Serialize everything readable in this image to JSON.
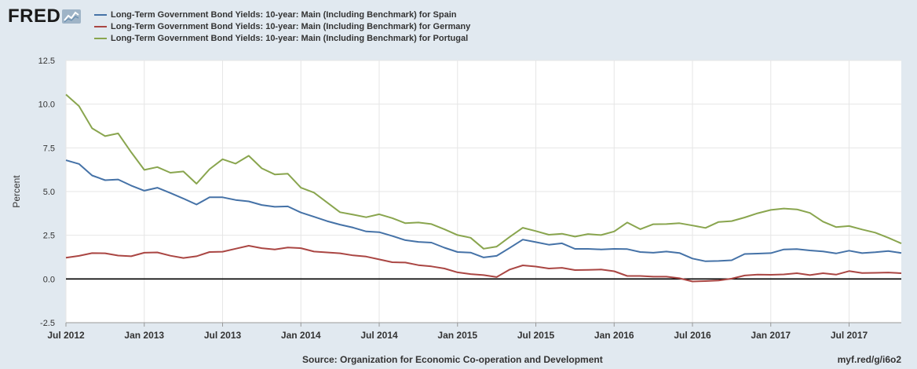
{
  "header": {
    "logo_text": "FRED",
    "logo_icon": "chart-line-icon"
  },
  "footer": {
    "source": "Source: Organization for Economic Co-operation and Development",
    "url": "myf.red/g/i6o2"
  },
  "chart_data": {
    "type": "line",
    "title": "",
    "xlabel": "",
    "ylabel": "Percent",
    "ylim": [
      -2.5,
      12.5
    ],
    "yticks": [
      -2.5,
      0.0,
      2.5,
      5.0,
      7.5,
      10.0,
      12.5
    ],
    "ytick_labels": [
      "-2.5",
      "0.0",
      "2.5",
      "5.0",
      "7.5",
      "10.0",
      "12.5"
    ],
    "xticks": [
      "2012-07",
      "2013-01",
      "2013-07",
      "2014-01",
      "2014-07",
      "2015-01",
      "2015-07",
      "2016-01",
      "2016-07",
      "2017-01",
      "2017-07"
    ],
    "xtick_labels": [
      "Jul 2012",
      "Jan 2013",
      "Jul 2013",
      "Jan 2014",
      "Jul 2014",
      "Jan 2015",
      "Jul 2015",
      "Jan 2016",
      "Jul 2016",
      "Jan 2017",
      "Jul 2017"
    ],
    "grid": true,
    "legend_position": "top",
    "x": [
      "2012-07",
      "2012-08",
      "2012-09",
      "2012-10",
      "2012-11",
      "2012-12",
      "2013-01",
      "2013-02",
      "2013-03",
      "2013-04",
      "2013-05",
      "2013-06",
      "2013-07",
      "2013-08",
      "2013-09",
      "2013-10",
      "2013-11",
      "2013-12",
      "2014-01",
      "2014-02",
      "2014-03",
      "2014-04",
      "2014-05",
      "2014-06",
      "2014-07",
      "2014-08",
      "2014-09",
      "2014-10",
      "2014-11",
      "2014-12",
      "2015-01",
      "2015-02",
      "2015-03",
      "2015-04",
      "2015-05",
      "2015-06",
      "2015-07",
      "2015-08",
      "2015-09",
      "2015-10",
      "2015-11",
      "2015-12",
      "2016-01",
      "2016-02",
      "2016-03",
      "2016-04",
      "2016-05",
      "2016-06",
      "2016-07",
      "2016-08",
      "2016-09",
      "2016-10",
      "2016-11",
      "2016-12",
      "2017-01",
      "2017-02",
      "2017-03",
      "2017-04",
      "2017-05",
      "2017-06",
      "2017-07",
      "2017-08",
      "2017-09",
      "2017-10",
      "2017-11"
    ],
    "series": [
      {
        "name": "Long-Term Government Bond Yields: 10-year: Main (Including Benchmark) for Spain",
        "color": "#4572a7",
        "values": [
          6.79,
          6.58,
          5.92,
          5.65,
          5.69,
          5.34,
          5.05,
          5.22,
          4.92,
          4.6,
          4.26,
          4.67,
          4.67,
          4.52,
          4.44,
          4.23,
          4.13,
          4.15,
          3.8,
          3.56,
          3.31,
          3.11,
          2.94,
          2.72,
          2.68,
          2.46,
          2.22,
          2.12,
          2.08,
          1.79,
          1.54,
          1.51,
          1.23,
          1.32,
          1.78,
          2.25,
          2.11,
          1.96,
          2.04,
          1.72,
          1.72,
          1.69,
          1.72,
          1.71,
          1.54,
          1.5,
          1.57,
          1.49,
          1.17,
          1.01,
          1.03,
          1.07,
          1.43,
          1.45,
          1.48,
          1.69,
          1.71,
          1.63,
          1.58,
          1.46,
          1.62,
          1.48,
          1.53,
          1.6,
          1.49
        ]
      },
      {
        "name": "Long-Term Government Bond Yields: 10-year: Main (Including Benchmark) for Germany",
        "color": "#aa4643",
        "values": [
          1.22,
          1.32,
          1.48,
          1.47,
          1.34,
          1.3,
          1.5,
          1.52,
          1.33,
          1.2,
          1.3,
          1.54,
          1.56,
          1.73,
          1.9,
          1.76,
          1.69,
          1.8,
          1.76,
          1.57,
          1.52,
          1.47,
          1.35,
          1.28,
          1.12,
          0.96,
          0.94,
          0.79,
          0.72,
          0.6,
          0.38,
          0.28,
          0.22,
          0.11,
          0.54,
          0.78,
          0.71,
          0.6,
          0.64,
          0.51,
          0.52,
          0.54,
          0.44,
          0.17,
          0.17,
          0.13,
          0.13,
          0.04,
          -0.14,
          -0.12,
          -0.09,
          0.02,
          0.2,
          0.25,
          0.24,
          0.26,
          0.33,
          0.22,
          0.33,
          0.25,
          0.45,
          0.34,
          0.35,
          0.37,
          0.33
        ]
      },
      {
        "name": "Long-Term Government Bond Yields: 10-year: Main (Including Benchmark) for Portugal",
        "color": "#89a54e",
        "values": [
          10.55,
          9.89,
          8.62,
          8.17,
          8.33,
          7.25,
          6.24,
          6.4,
          6.08,
          6.15,
          5.45,
          6.28,
          6.85,
          6.6,
          7.05,
          6.33,
          5.98,
          6.02,
          5.22,
          4.94,
          4.38,
          3.82,
          3.68,
          3.53,
          3.7,
          3.48,
          3.19,
          3.23,
          3.14,
          2.84,
          2.51,
          2.36,
          1.73,
          1.85,
          2.41,
          2.93,
          2.74,
          2.53,
          2.59,
          2.42,
          2.57,
          2.51,
          2.72,
          3.23,
          2.85,
          3.13,
          3.14,
          3.19,
          3.06,
          2.92,
          3.26,
          3.31,
          3.52,
          3.76,
          3.95,
          4.03,
          3.98,
          3.78,
          3.28,
          2.97,
          3.03,
          2.83,
          2.65,
          2.36,
          2.03
        ]
      }
    ]
  }
}
